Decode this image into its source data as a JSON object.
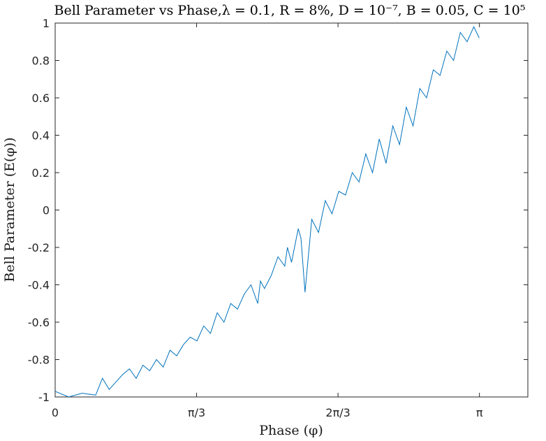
{
  "chart_data": {
    "type": "line",
    "title": "Bell Parameter vs Phase,λ = 0.1, R = 8%, D = 10⁻⁷, B = 0.05, C = 10⁵",
    "xlabel": "Phase (φ)",
    "ylabel": "Bell Parameter (E(φ))",
    "xlim": [
      0,
      3.5
    ],
    "ylim": [
      -1,
      1
    ],
    "grid": false,
    "xticks": [
      {
        "value": 0,
        "label": "0"
      },
      {
        "value": 1.0472,
        "label": "π/3"
      },
      {
        "value": 2.0944,
        "label": "2π/3"
      },
      {
        "value": 3.1416,
        "label": "π"
      }
    ],
    "yticks": [
      {
        "value": -1,
        "label": "-1"
      },
      {
        "value": -0.8,
        "label": "-0.8"
      },
      {
        "value": -0.6,
        "label": "-0.6"
      },
      {
        "value": -0.4,
        "label": "-0.4"
      },
      {
        "value": -0.2,
        "label": "-0.2"
      },
      {
        "value": 0,
        "label": "0"
      },
      {
        "value": 0.2,
        "label": "0.2"
      },
      {
        "value": 0.4,
        "label": "0.4"
      },
      {
        "value": 0.6,
        "label": "0.6"
      },
      {
        "value": 0.8,
        "label": "0.8"
      },
      {
        "value": 1,
        "label": "1"
      }
    ],
    "series": [
      {
        "color": "#0072BD",
        "x": [
          0,
          0.1,
          0.2,
          0.3,
          0.35,
          0.4,
          0.45,
          0.5,
          0.55,
          0.6,
          0.65,
          0.7,
          0.75,
          0.8,
          0.85,
          0.9,
          0.95,
          1.0,
          1.05,
          1.1,
          1.15,
          1.2,
          1.25,
          1.3,
          1.35,
          1.4,
          1.45,
          1.5,
          1.52,
          1.55,
          1.6,
          1.65,
          1.7,
          1.72,
          1.75,
          1.8,
          1.82,
          1.85,
          1.9,
          1.95,
          2.0,
          2.05,
          2.1,
          2.15,
          2.2,
          2.25,
          2.3,
          2.35,
          2.4,
          2.45,
          2.5,
          2.55,
          2.6,
          2.65,
          2.7,
          2.75,
          2.8,
          2.85,
          2.9,
          2.95,
          3.0,
          3.05,
          3.1,
          3.14
        ],
        "y": [
          -0.97,
          -1.0,
          -0.98,
          -0.99,
          -0.9,
          -0.96,
          -0.92,
          -0.88,
          -0.85,
          -0.9,
          -0.83,
          -0.86,
          -0.8,
          -0.84,
          -0.75,
          -0.78,
          -0.72,
          -0.68,
          -0.7,
          -0.62,
          -0.66,
          -0.55,
          -0.6,
          -0.5,
          -0.53,
          -0.45,
          -0.4,
          -0.5,
          -0.38,
          -0.42,
          -0.35,
          -0.25,
          -0.3,
          -0.2,
          -0.28,
          -0.1,
          -0.15,
          -0.44,
          -0.05,
          -0.12,
          0.05,
          -0.02,
          0.1,
          0.08,
          0.2,
          0.15,
          0.3,
          0.2,
          0.38,
          0.25,
          0.45,
          0.35,
          0.55,
          0.45,
          0.65,
          0.6,
          0.75,
          0.72,
          0.85,
          0.8,
          0.95,
          0.9,
          0.98,
          0.92
        ]
      }
    ]
  }
}
